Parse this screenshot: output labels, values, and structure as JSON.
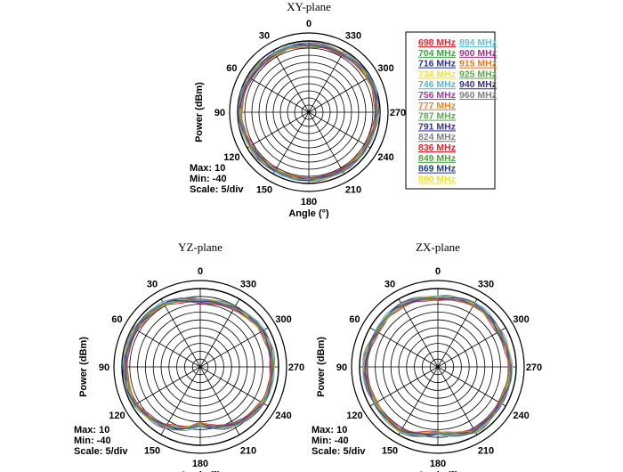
{
  "chart_data": {
    "type": "polar",
    "frequencies": [
      "698 MHz",
      "704 MHz",
      "716 MHz",
      "734 MHz",
      "746 MHz",
      "756 MHz",
      "777 MHz",
      "787 MHz",
      "791 MHz",
      "824 MHz",
      "836 MHz",
      "849 MHz",
      "869 MHz",
      "880 MHz",
      "894 MHz",
      "900 MHz",
      "915 MHz",
      "925 MHz",
      "940 MHz",
      "960 MHz"
    ],
    "colors": [
      "#e8262e",
      "#3aa641",
      "#2b3490",
      "#f2e23a",
      "#5ab7d6",
      "#a23f98",
      "#f08424",
      "#59ad4f",
      "#35338e",
      "#7f7f7f",
      "#e0222c",
      "#4ea33f",
      "#1f3f91",
      "#f6e51c",
      "#66bfd8",
      "#a0358d",
      "#e8791f",
      "#5aa84c",
      "#3a3187",
      "#808080"
    ],
    "angle_labels": [
      "0",
      "30",
      "60",
      "90",
      "120",
      "150",
      "180",
      "210",
      "240",
      "270",
      "300",
      "330"
    ],
    "rlim": [
      -40,
      10
    ],
    "xlabel": "Angle (°)",
    "ylabel": "Power (dBm)",
    "info": {
      "max": "Max: 10",
      "min": "Min: -40",
      "scale": "Scale: 5/div"
    },
    "plots": [
      {
        "title": "XY-plane",
        "angles": [
          0,
          30,
          60,
          90,
          120,
          150,
          180,
          210,
          240,
          270,
          300,
          330
        ],
        "power": [
          7.5,
          7.5,
          8.0,
          8.5,
          7.5,
          7.0,
          7.5,
          7.0,
          7.0,
          8.0,
          8.5,
          7.5
        ]
      },
      {
        "title": "YZ-plane",
        "angles": [
          0,
          30,
          60,
          90,
          120,
          150,
          180,
          210,
          240,
          270,
          300,
          330
        ],
        "power": [
          2.0,
          6.5,
          8.0,
          8.0,
          8.0,
          4.0,
          -3.0,
          3.0,
          6.0,
          6.5,
          6.0,
          3.5
        ]
      },
      {
        "title": "ZX-plane",
        "angles": [
          0,
          30,
          60,
          90,
          120,
          150,
          180,
          210,
          240,
          270,
          300,
          330
        ],
        "power": [
          4.0,
          6.0,
          5.0,
          7.0,
          6.0,
          7.5,
          2.0,
          7.5,
          6.0,
          6.5,
          5.0,
          6.5
        ]
      }
    ]
  }
}
